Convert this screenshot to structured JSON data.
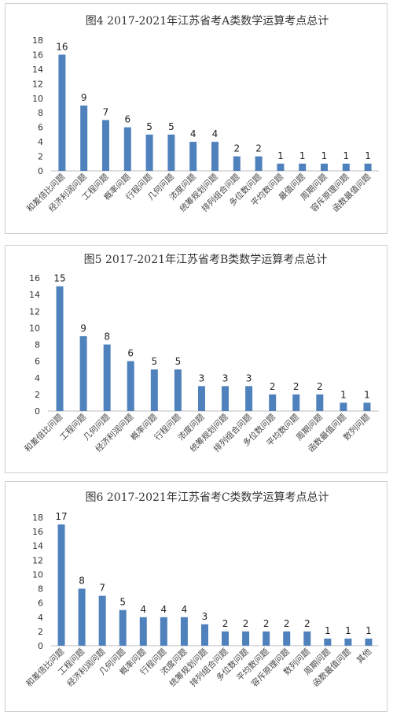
{
  "chart_data": [
    {
      "type": "bar",
      "title": "图4  2017-2021年江苏省考A类数学运算考点总计",
      "categories": [
        "和差倍比问题",
        "经济利润问题",
        "工程问题",
        "概率问题",
        "行程问题",
        "几何问题",
        "浓度问题",
        "统筹规划问题",
        "排列组合问题",
        "多位数问题",
        "平均数问题",
        "最值问题",
        "周期问题",
        "容斥原理问题",
        "函数最值问题"
      ],
      "values": [
        16,
        9,
        7,
        6,
        5,
        5,
        4,
        4,
        2,
        2,
        1,
        1,
        1,
        1,
        1
      ],
      "ylim": [
        0,
        18
      ],
      "yticks": [
        0,
        2,
        4,
        6,
        8,
        10,
        12,
        14,
        16,
        18
      ],
      "xlabel": "",
      "ylabel": "",
      "color": "#4f81bd",
      "grid": false
    },
    {
      "type": "bar",
      "title": "图5  2017-2021年江苏省考B类数学运算考点总计",
      "categories": [
        "和差倍比问题",
        "工程问题",
        "几何问题",
        "经济利润问题",
        "概率问题",
        "行程问题",
        "浓度问题",
        "统筹规划问题",
        "排列组合问题",
        "多位数问题",
        "平均数问题",
        "周期问题",
        "函数最值问题",
        "数列问题"
      ],
      "values": [
        15,
        9,
        8,
        6,
        5,
        5,
        3,
        3,
        3,
        2,
        2,
        2,
        1,
        1
      ],
      "ylim": [
        0,
        16
      ],
      "yticks": [
        0,
        2,
        4,
        6,
        8,
        10,
        12,
        14,
        16
      ],
      "xlabel": "",
      "ylabel": "",
      "color": "#4f81bd",
      "grid": false
    },
    {
      "type": "bar",
      "title": "图6  2017-2021年江苏省考C类数学运算考点总计",
      "categories": [
        "和差倍比问题",
        "工程问题",
        "经济利润问题",
        "几何问题",
        "概率问题",
        "行程问题",
        "浓度问题",
        "统筹规划问题",
        "排列组合问题",
        "多位数问题",
        "平均数问题",
        "容斥原理问题",
        "数列问题",
        "周期问题",
        "函数最值问题",
        "其他"
      ],
      "values": [
        17,
        8,
        7,
        5,
        4,
        4,
        4,
        3,
        2,
        2,
        2,
        2,
        2,
        1,
        1,
        1
      ],
      "ylim": [
        0,
        18
      ],
      "yticks": [
        0,
        2,
        4,
        6,
        8,
        10,
        12,
        14,
        16,
        18
      ],
      "xlabel": "",
      "ylabel": "",
      "color": "#4f81bd",
      "grid": false
    }
  ]
}
